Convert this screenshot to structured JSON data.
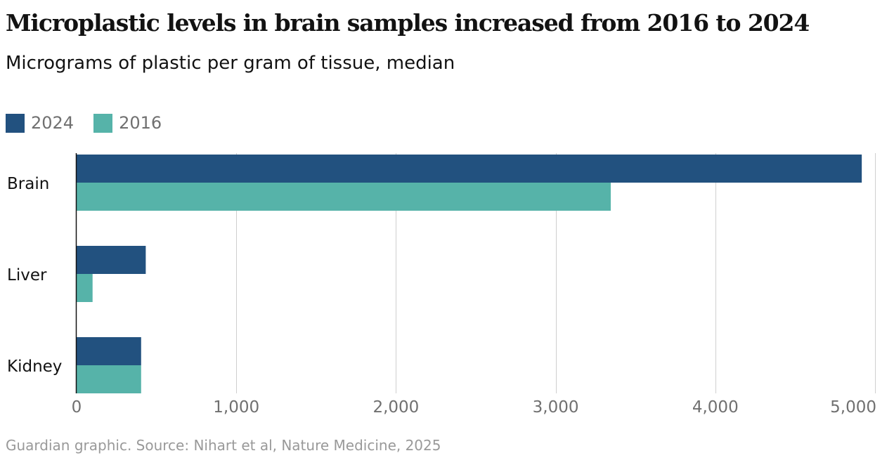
{
  "chart_data": {
    "type": "bar",
    "orientation": "horizontal",
    "title": "Microplastic levels in brain samples increased from 2016 to 2024",
    "subtitle": "Micrograms of plastic per gram of tissue, median",
    "categories": [
      "Brain",
      "Liver",
      "Kidney"
    ],
    "series": [
      {
        "name": "2024",
        "values": [
          4917,
          433,
          404
        ],
        "color": "#22517f"
      },
      {
        "name": "2016",
        "values": [
          3345,
          100,
          404
        ],
        "color": "#56b3a9"
      }
    ],
    "xlim": [
      0,
      5000
    ],
    "xticks": [
      0,
      1000,
      2000,
      3000,
      4000,
      5000
    ],
    "xtick_labels": [
      "0",
      "1,000",
      "2,000",
      "3,000",
      "4,000",
      "5,000"
    ],
    "grid": "vertical",
    "legend_placement": "top-left",
    "source": "Guardian graphic. Source: Nihart et al, Nature Medicine, 2025"
  }
}
